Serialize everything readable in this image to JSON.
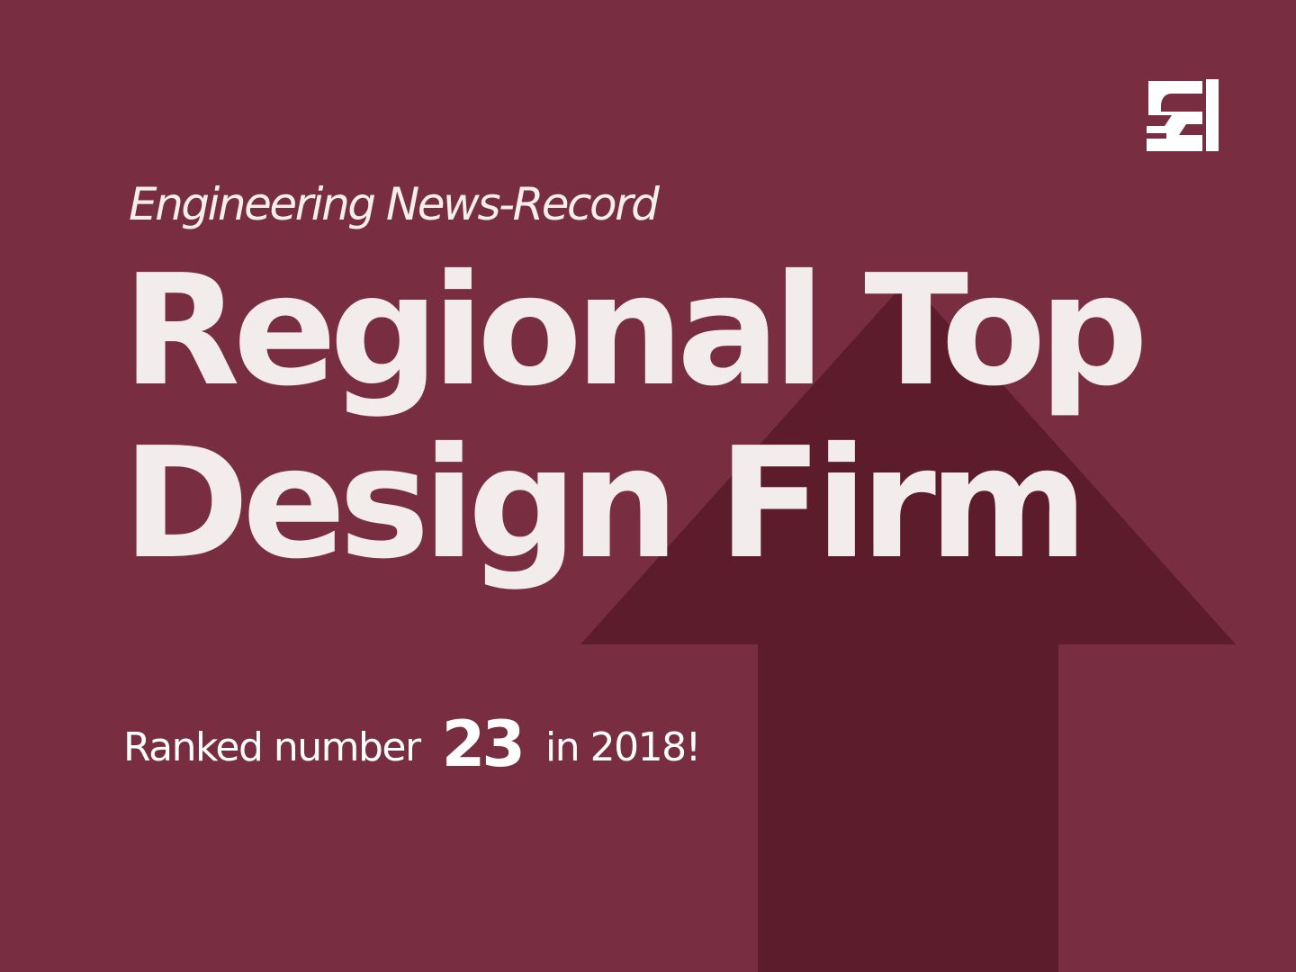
{
  "colors": {
    "background": "#782D40",
    "arrow": "#5C1C2C",
    "text": "#F2ECED",
    "logo": "#FFFFFF"
  },
  "logo": {
    "icon": "g-logo-icon"
  },
  "subtitle": "Engineering News-Record",
  "headline": {
    "line1": "Regional Top",
    "line2": "Design Firm"
  },
  "ranking": {
    "prefix": "Ranked number",
    "number": "23",
    "suffix": "in 2018!"
  },
  "decoration": {
    "icon": "up-arrow-icon"
  }
}
